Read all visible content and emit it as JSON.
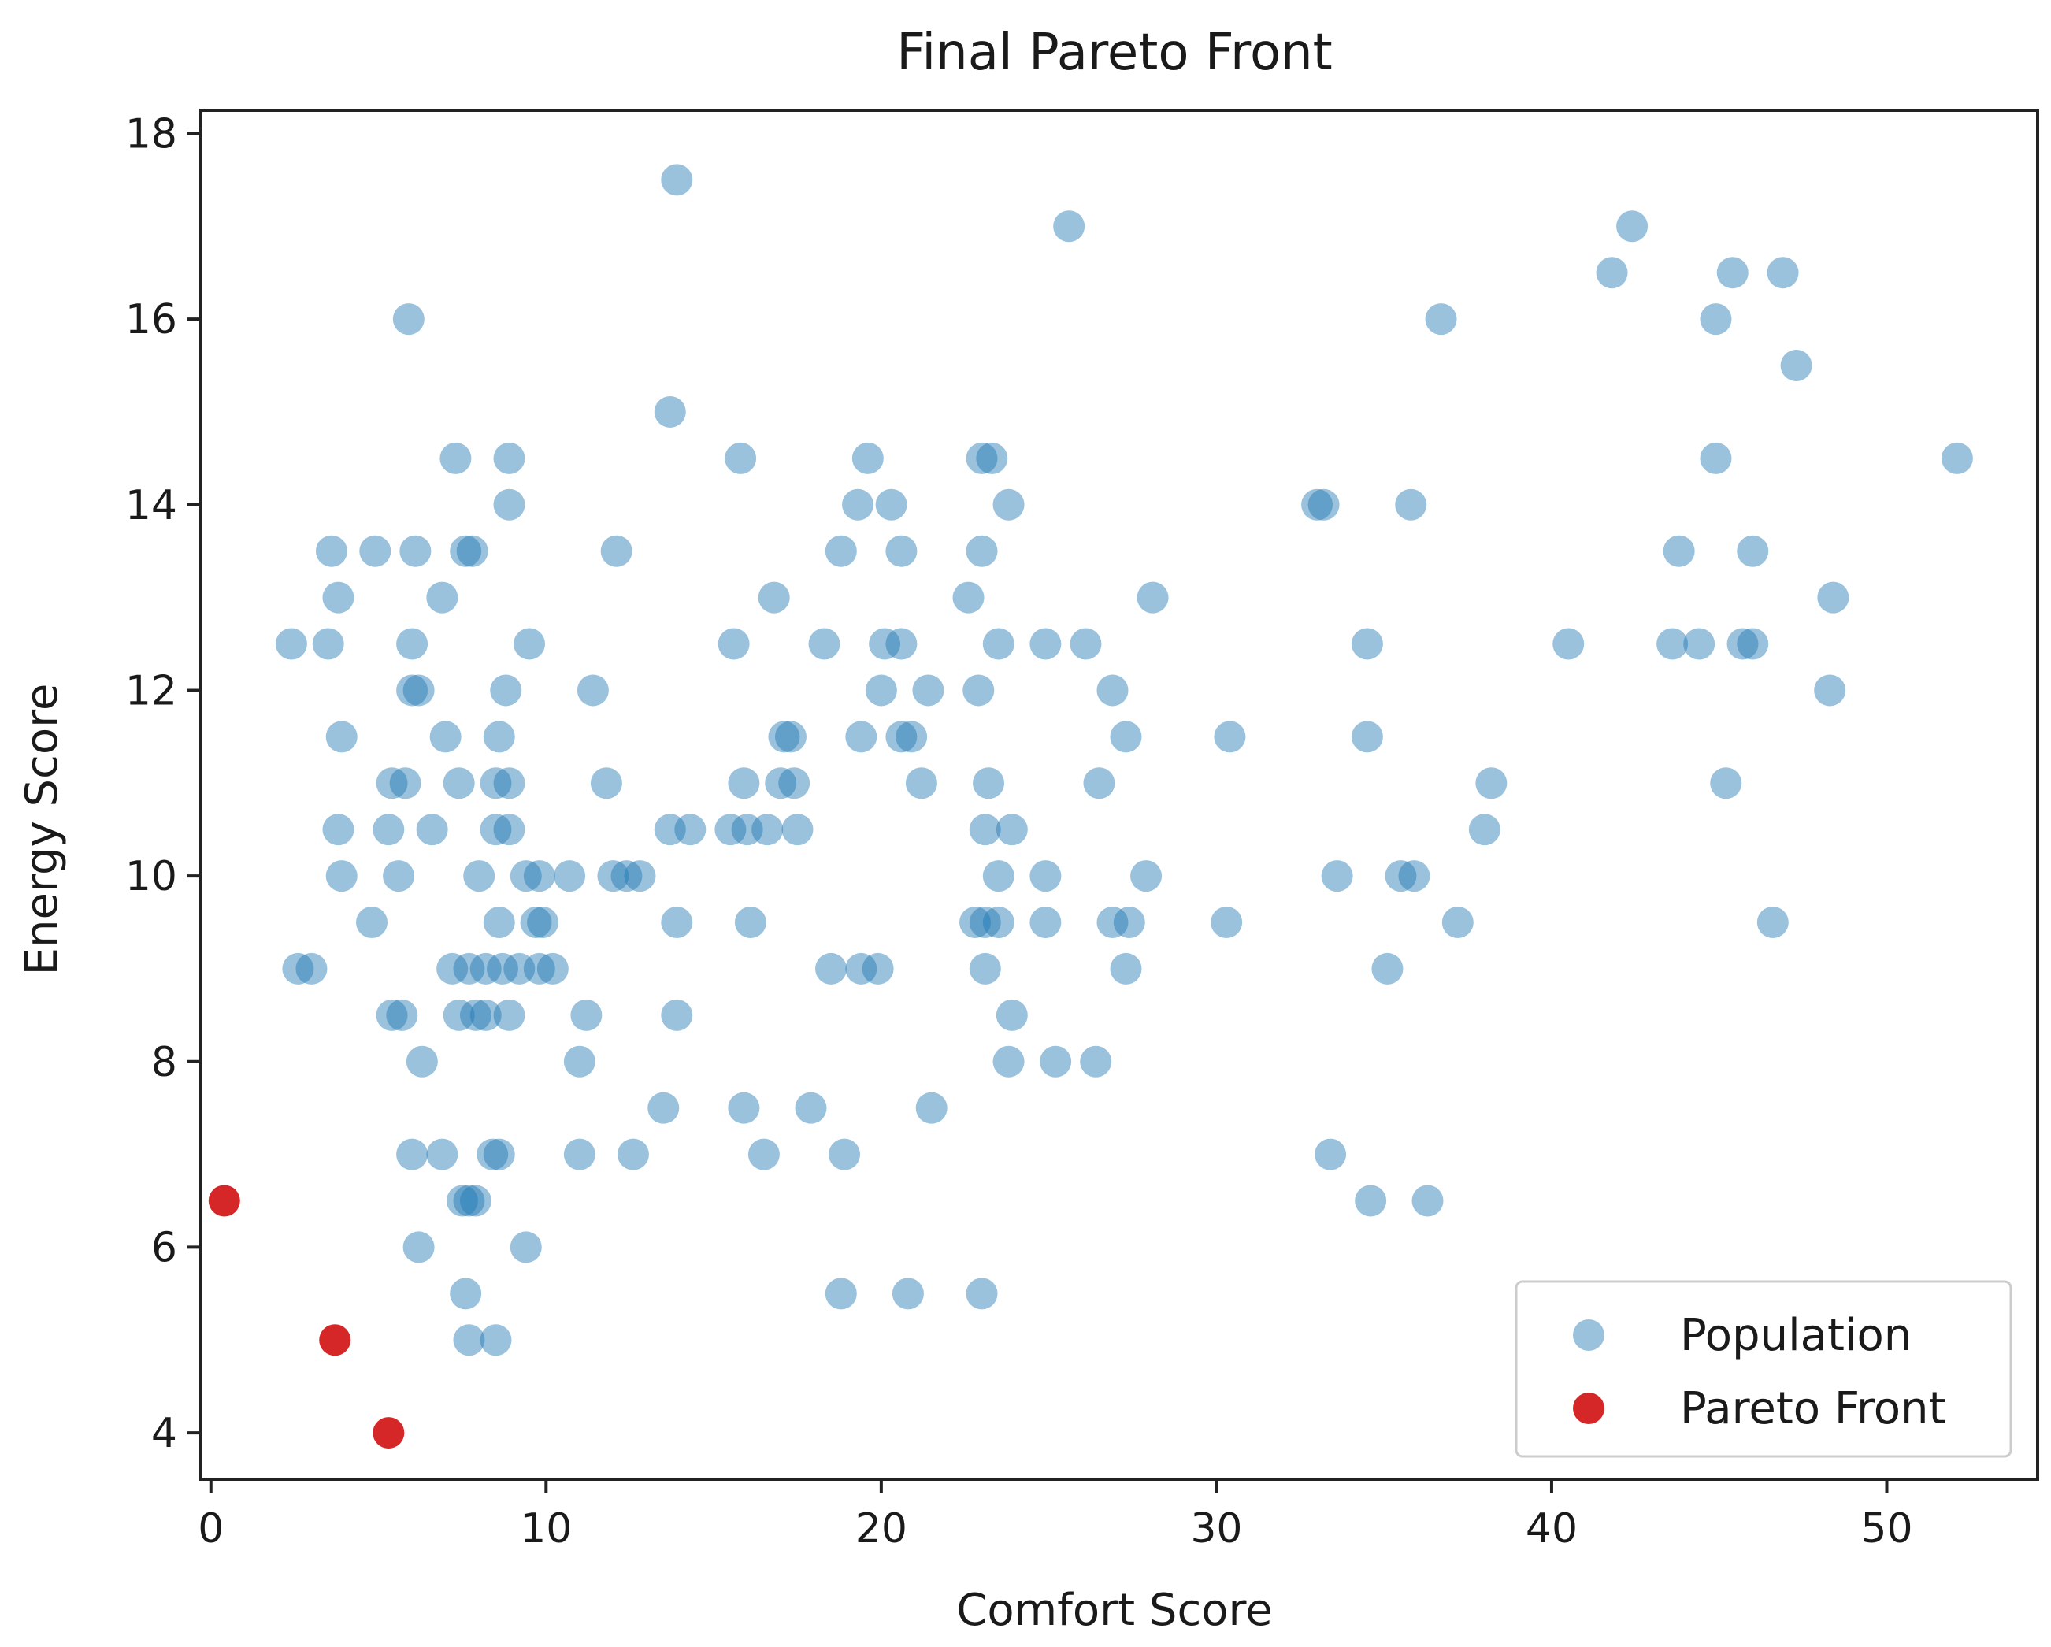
{
  "chart_data": {
    "type": "scatter",
    "title": "Final Pareto Front",
    "xlabel": "Comfort Score",
    "ylabel": "Energy Score",
    "xlim": [
      -0.3,
      54.5
    ],
    "ylim": [
      3.5,
      18.25
    ],
    "xticks": [
      0,
      10,
      20,
      30,
      40,
      50
    ],
    "yticks": [
      4,
      6,
      8,
      10,
      12,
      14,
      16,
      18
    ],
    "grid": false,
    "legend_position": "bottom-right",
    "series": [
      {
        "name": "Population",
        "color": "#1f77b4",
        "opacity": 0.45,
        "points": [
          [
            13.9,
            17.5
          ],
          [
            25.6,
            17.0
          ],
          [
            42.4,
            17.0
          ],
          [
            41.8,
            16.5
          ],
          [
            45.4,
            16.5
          ],
          [
            46.9,
            16.5
          ],
          [
            5.9,
            16.0
          ],
          [
            36.7,
            16.0
          ],
          [
            44.9,
            16.0
          ],
          [
            47.3,
            15.5
          ],
          [
            13.7,
            15.0
          ],
          [
            7.3,
            14.5
          ],
          [
            8.9,
            14.5
          ],
          [
            15.8,
            14.5
          ],
          [
            19.6,
            14.5
          ],
          [
            23.0,
            14.5
          ],
          [
            23.3,
            14.5
          ],
          [
            44.9,
            14.5
          ],
          [
            52.1,
            14.5
          ],
          [
            8.9,
            14.0
          ],
          [
            19.3,
            14.0
          ],
          [
            20.3,
            14.0
          ],
          [
            23.8,
            14.0
          ],
          [
            33.0,
            14.0
          ],
          [
            33.2,
            14.0
          ],
          [
            35.8,
            14.0
          ],
          [
            3.6,
            13.5
          ],
          [
            4.9,
            13.5
          ],
          [
            6.1,
            13.5
          ],
          [
            7.6,
            13.5
          ],
          [
            7.8,
            13.5
          ],
          [
            12.1,
            13.5
          ],
          [
            18.8,
            13.5
          ],
          [
            20.6,
            13.5
          ],
          [
            23.0,
            13.5
          ],
          [
            43.8,
            13.5
          ],
          [
            46.0,
            13.5
          ],
          [
            3.8,
            13.0
          ],
          [
            6.9,
            13.0
          ],
          [
            16.8,
            13.0
          ],
          [
            22.6,
            13.0
          ],
          [
            28.1,
            13.0
          ],
          [
            48.4,
            13.0
          ],
          [
            2.4,
            12.5
          ],
          [
            3.5,
            12.5
          ],
          [
            6.0,
            12.5
          ],
          [
            9.5,
            12.5
          ],
          [
            15.6,
            12.5
          ],
          [
            18.3,
            12.5
          ],
          [
            20.1,
            12.5
          ],
          [
            20.6,
            12.5
          ],
          [
            23.5,
            12.5
          ],
          [
            24.9,
            12.5
          ],
          [
            26.1,
            12.5
          ],
          [
            34.5,
            12.5
          ],
          [
            40.5,
            12.5
          ],
          [
            43.6,
            12.5
          ],
          [
            44.4,
            12.5
          ],
          [
            45.7,
            12.5
          ],
          [
            46.0,
            12.5
          ],
          [
            6.0,
            12.0
          ],
          [
            6.2,
            12.0
          ],
          [
            8.8,
            12.0
          ],
          [
            11.4,
            12.0
          ],
          [
            20.0,
            12.0
          ],
          [
            21.4,
            12.0
          ],
          [
            22.9,
            12.0
          ],
          [
            26.9,
            12.0
          ],
          [
            48.3,
            12.0
          ],
          [
            3.9,
            11.5
          ],
          [
            7.0,
            11.5
          ],
          [
            8.6,
            11.5
          ],
          [
            17.1,
            11.5
          ],
          [
            17.3,
            11.5
          ],
          [
            19.4,
            11.5
          ],
          [
            20.6,
            11.5
          ],
          [
            20.9,
            11.5
          ],
          [
            27.3,
            11.5
          ],
          [
            30.4,
            11.5
          ],
          [
            34.5,
            11.5
          ],
          [
            5.4,
            11.0
          ],
          [
            5.8,
            11.0
          ],
          [
            7.4,
            11.0
          ],
          [
            8.5,
            11.0
          ],
          [
            8.9,
            11.0
          ],
          [
            11.8,
            11.0
          ],
          [
            15.9,
            11.0
          ],
          [
            17.0,
            11.0
          ],
          [
            17.4,
            11.0
          ],
          [
            21.2,
            11.0
          ],
          [
            23.2,
            11.0
          ],
          [
            26.5,
            11.0
          ],
          [
            38.2,
            11.0
          ],
          [
            45.2,
            11.0
          ],
          [
            3.8,
            10.5
          ],
          [
            5.3,
            10.5
          ],
          [
            6.6,
            10.5
          ],
          [
            8.5,
            10.5
          ],
          [
            8.9,
            10.5
          ],
          [
            13.7,
            10.5
          ],
          [
            14.3,
            10.5
          ],
          [
            15.5,
            10.5
          ],
          [
            16.0,
            10.5
          ],
          [
            16.6,
            10.5
          ],
          [
            17.5,
            10.5
          ],
          [
            23.1,
            10.5
          ],
          [
            23.9,
            10.5
          ],
          [
            38.0,
            10.5
          ],
          [
            3.9,
            10.0
          ],
          [
            5.6,
            10.0
          ],
          [
            8.0,
            10.0
          ],
          [
            9.4,
            10.0
          ],
          [
            9.8,
            10.0
          ],
          [
            10.7,
            10.0
          ],
          [
            12.0,
            10.0
          ],
          [
            12.4,
            10.0
          ],
          [
            12.8,
            10.0
          ],
          [
            23.5,
            10.0
          ],
          [
            24.9,
            10.0
          ],
          [
            27.9,
            10.0
          ],
          [
            33.6,
            10.0
          ],
          [
            35.5,
            10.0
          ],
          [
            35.9,
            10.0
          ],
          [
            4.8,
            9.5
          ],
          [
            8.6,
            9.5
          ],
          [
            9.7,
            9.5
          ],
          [
            9.9,
            9.5
          ],
          [
            13.9,
            9.5
          ],
          [
            16.1,
            9.5
          ],
          [
            22.8,
            9.5
          ],
          [
            23.1,
            9.5
          ],
          [
            23.5,
            9.5
          ],
          [
            24.9,
            9.5
          ],
          [
            26.9,
            9.5
          ],
          [
            27.4,
            9.5
          ],
          [
            30.3,
            9.5
          ],
          [
            37.2,
            9.5
          ],
          [
            46.6,
            9.5
          ],
          [
            2.6,
            9.0
          ],
          [
            3.0,
            9.0
          ],
          [
            7.2,
            9.0
          ],
          [
            7.7,
            9.0
          ],
          [
            8.2,
            9.0
          ],
          [
            8.7,
            9.0
          ],
          [
            9.2,
            9.0
          ],
          [
            9.8,
            9.0
          ],
          [
            10.2,
            9.0
          ],
          [
            18.5,
            9.0
          ],
          [
            19.4,
            9.0
          ],
          [
            19.9,
            9.0
          ],
          [
            23.1,
            9.0
          ],
          [
            27.3,
            9.0
          ],
          [
            35.1,
            9.0
          ],
          [
            5.4,
            8.5
          ],
          [
            5.7,
            8.5
          ],
          [
            7.4,
            8.5
          ],
          [
            7.9,
            8.5
          ],
          [
            8.2,
            8.5
          ],
          [
            8.9,
            8.5
          ],
          [
            11.2,
            8.5
          ],
          [
            13.9,
            8.5
          ],
          [
            23.9,
            8.5
          ],
          [
            6.3,
            8.0
          ],
          [
            11.0,
            8.0
          ],
          [
            23.8,
            8.0
          ],
          [
            25.2,
            8.0
          ],
          [
            26.4,
            8.0
          ],
          [
            13.5,
            7.5
          ],
          [
            15.9,
            7.5
          ],
          [
            17.9,
            7.5
          ],
          [
            21.5,
            7.5
          ],
          [
            6.0,
            7.0
          ],
          [
            6.9,
            7.0
          ],
          [
            8.4,
            7.0
          ],
          [
            8.6,
            7.0
          ],
          [
            11.0,
            7.0
          ],
          [
            12.6,
            7.0
          ],
          [
            16.5,
            7.0
          ],
          [
            18.9,
            7.0
          ],
          [
            33.4,
            7.0
          ],
          [
            7.5,
            6.5
          ],
          [
            7.7,
            6.5
          ],
          [
            7.9,
            6.5
          ],
          [
            34.6,
            6.5
          ],
          [
            36.3,
            6.5
          ],
          [
            6.2,
            6.0
          ],
          [
            9.4,
            6.0
          ],
          [
            7.6,
            5.5
          ],
          [
            18.8,
            5.5
          ],
          [
            20.8,
            5.5
          ],
          [
            23.0,
            5.5
          ],
          [
            7.7,
            5.0
          ],
          [
            8.5,
            5.0
          ]
        ]
      },
      {
        "name": "Pareto Front",
        "color": "#d62728",
        "opacity": 1.0,
        "points": [
          [
            0.4,
            6.5
          ],
          [
            3.7,
            5.0
          ],
          [
            5.3,
            4.0
          ]
        ]
      }
    ]
  }
}
